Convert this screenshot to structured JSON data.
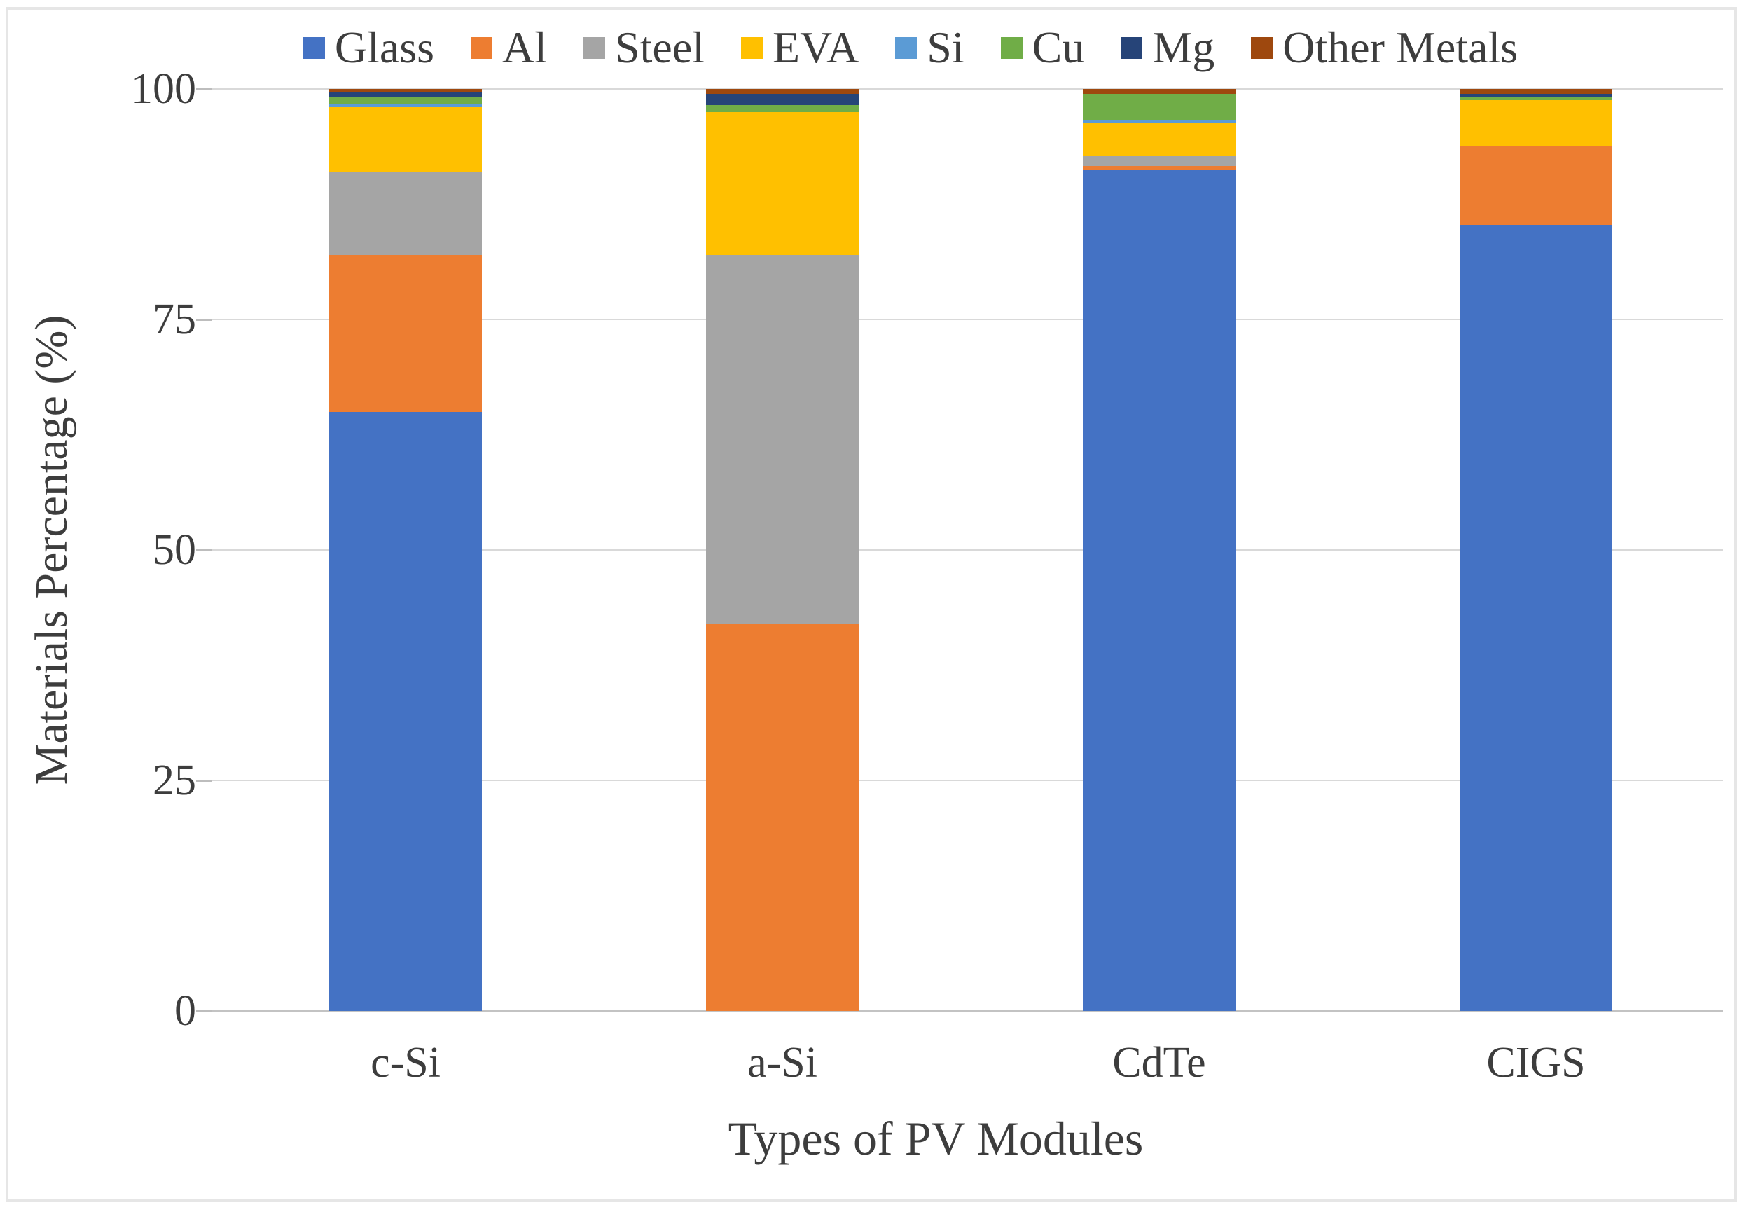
{
  "chart_data": {
    "type": "bar",
    "stacked": true,
    "orientation": "vertical",
    "xlabel": "Types of PV Modules",
    "ylabel": "Materials Percentage (%)",
    "ylim": [
      0,
      100
    ],
    "yticks": [
      0,
      25,
      50,
      75,
      100
    ],
    "grid": true,
    "legend_position": "top",
    "categories": [
      "c-Si",
      "a-Si",
      "CdTe",
      "CIGS"
    ],
    "series": [
      {
        "name": "Glass",
        "color": "#4472C4",
        "values": [
          65,
          0,
          91.25,
          85.25
        ]
      },
      {
        "name": "Al",
        "color": "#ED7D31",
        "values": [
          17,
          42,
          0.4,
          8.6
        ]
      },
      {
        "name": "Steel",
        "color": "#A5A5A5",
        "values": [
          9,
          40,
          1.1,
          0
        ]
      },
      {
        "name": "EVA",
        "color": "#FFC000",
        "values": [
          7,
          15.5,
          3.6,
          4.9
        ]
      },
      {
        "name": "Si",
        "color": "#5B9BD5",
        "values": [
          0.4,
          0,
          0.25,
          0
        ]
      },
      {
        "name": "Cu",
        "color": "#70AD47",
        "values": [
          0.7,
          0.75,
          2.9,
          0.45
        ]
      },
      {
        "name": "Mg",
        "color": "#264478",
        "values": [
          0.5,
          1.25,
          0,
          0.25
        ]
      },
      {
        "name": "Other Metals",
        "color": "#9E480E",
        "values": [
          0.4,
          0.5,
          0.5,
          0.55
        ]
      }
    ]
  }
}
